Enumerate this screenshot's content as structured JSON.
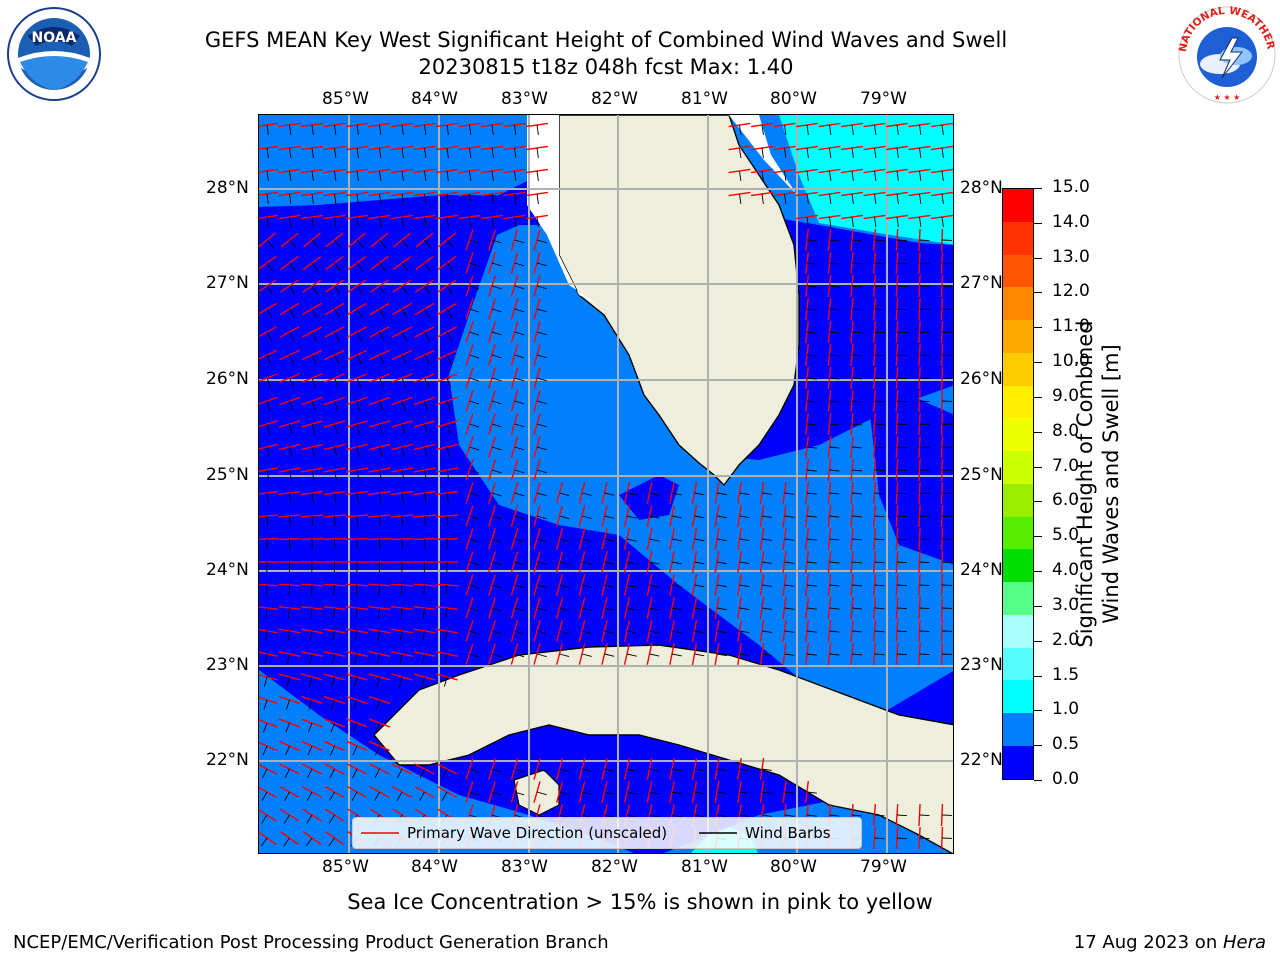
{
  "header": {
    "title_line1": "GEFS MEAN Key West Significant Height of Combined Wind Waves and Swell",
    "title_line2": "20230815 t18z 048h fcst   Max: 1.40"
  },
  "logos": {
    "noaa": "NOAA",
    "noaa_ring": "NATIONAL OCEANIC AND ATMOSPHERIC ADMINISTRATION · U.S. DEPARTMENT OF COMMERCE",
    "nws_ring": "NATIONAL WEATHER SERVICE"
  },
  "map": {
    "lon_labels": [
      "85°W",
      "84°W",
      "83°W",
      "82°W",
      "81°W",
      "80°W",
      "79°W"
    ],
    "lat_labels": [
      "28°N",
      "27°N",
      "26°N",
      "25°N",
      "24°N",
      "23°N",
      "22°N"
    ]
  },
  "legend": {
    "wave_direction": "Primary Wave Direction (unscaled)",
    "wind_barbs": "Wind Barbs"
  },
  "colorbar": {
    "label_line1": "Significant Height of Combined",
    "label_line2": "Wind Waves and Swell [m]",
    "ticks": [
      "15.0",
      "14.0",
      "13.0",
      "12.0",
      "11.0",
      "10.0",
      "9.0",
      "8.0",
      "7.0",
      "6.0",
      "5.0",
      "4.0",
      "3.0",
      "2.0",
      "1.5",
      "1.0",
      "0.5",
      "0.0"
    ],
    "colors": [
      "#ff0000",
      "#ff3300",
      "#ff5500",
      "#ff8800",
      "#ffaa00",
      "#ffcc00",
      "#ffee00",
      "#eeff00",
      "#ccff00",
      "#99ee00",
      "#55ee00",
      "#00dd00",
      "#55ff88",
      "#aaffff",
      "#55ffff",
      "#00ffff",
      "#0080ff",
      "#0000ff"
    ]
  },
  "palette": {
    "ocean_low": "#0000ff",
    "ocean_mid": "#0080ff",
    "ocean_high": "#00ffff",
    "land": "#eeeedd",
    "wave_arrow": "#ff0000",
    "barb": "#000000"
  },
  "footer": {
    "note": "Sea Ice Concentration > 15% is shown in pink to yellow",
    "left": "NCEP/EMC/Verification Post Processing Product Generation Branch",
    "right_date": "17 Aug 2023 on ",
    "right_host": "Hera"
  }
}
